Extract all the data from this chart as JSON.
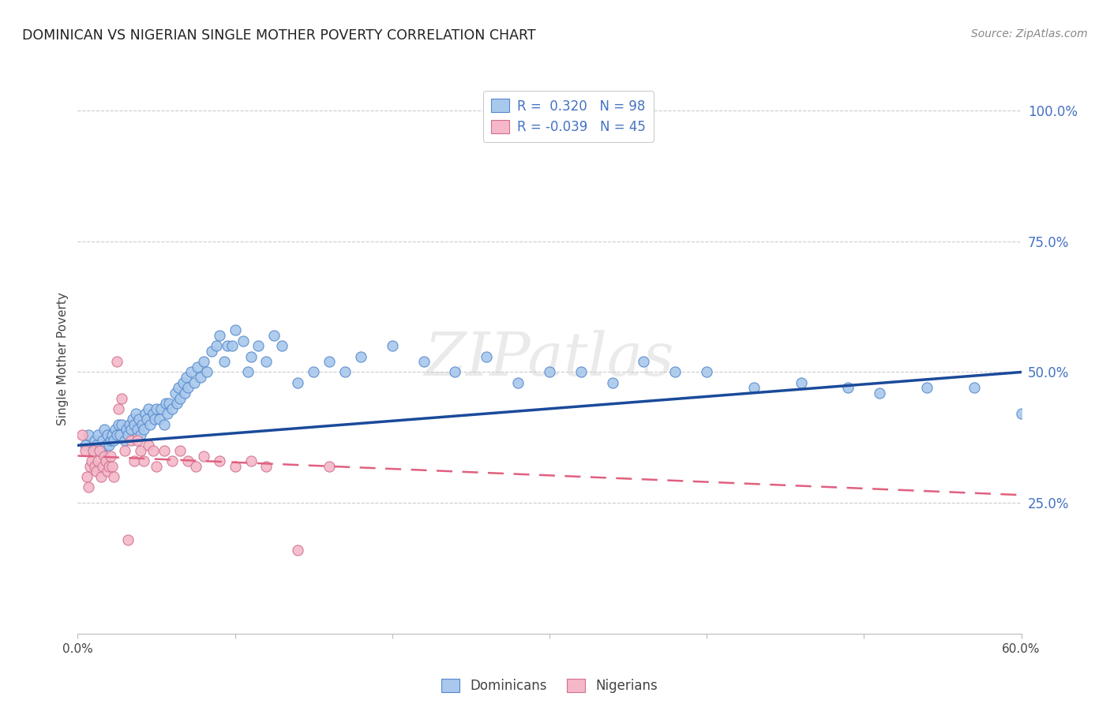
{
  "title": "DOMINICAN VS NIGERIAN SINGLE MOTHER POVERTY CORRELATION CHART",
  "source": "Source: ZipAtlas.com",
  "ylabel": "Single Mother Poverty",
  "ytick_labels": [
    "25.0%",
    "50.0%",
    "75.0%",
    "100.0%"
  ],
  "ytick_values": [
    0.25,
    0.5,
    0.75,
    1.0
  ],
  "xlim": [
    0.0,
    0.6
  ],
  "ylim": [
    0.0,
    1.05
  ],
  "dominican_color": "#A8C8EC",
  "dominican_edge_color": "#5588CC",
  "nigerian_color": "#F4B8C8",
  "nigerian_edge_color": "#D07090",
  "dominican_line_color": "#1A4A9A",
  "nigerian_line_color": "#E06080",
  "watermark": "ZIPatlas",
  "dominicans_x": [
    0.005,
    0.007,
    0.01,
    0.011,
    0.012,
    0.013,
    0.015,
    0.016,
    0.017,
    0.018,
    0.019,
    0.02,
    0.021,
    0.022,
    0.023,
    0.024,
    0.025,
    0.026,
    0.027,
    0.028,
    0.03,
    0.031,
    0.032,
    0.033,
    0.034,
    0.035,
    0.036,
    0.037,
    0.038,
    0.039,
    0.04,
    0.041,
    0.042,
    0.043,
    0.044,
    0.045,
    0.046,
    0.048,
    0.049,
    0.05,
    0.052,
    0.053,
    0.055,
    0.056,
    0.057,
    0.058,
    0.06,
    0.062,
    0.063,
    0.064,
    0.065,
    0.067,
    0.068,
    0.069,
    0.07,
    0.072,
    0.074,
    0.076,
    0.078,
    0.08,
    0.082,
    0.085,
    0.088,
    0.09,
    0.093,
    0.095,
    0.098,
    0.1,
    0.105,
    0.108,
    0.11,
    0.115,
    0.12,
    0.125,
    0.13,
    0.14,
    0.15,
    0.16,
    0.17,
    0.18,
    0.2,
    0.22,
    0.24,
    0.26,
    0.28,
    0.3,
    0.32,
    0.34,
    0.36,
    0.38,
    0.4,
    0.43,
    0.46,
    0.49,
    0.51,
    0.54,
    0.57,
    0.6
  ],
  "dominicans_y": [
    0.36,
    0.38,
    0.35,
    0.37,
    0.36,
    0.38,
    0.35,
    0.37,
    0.39,
    0.36,
    0.38,
    0.36,
    0.37,
    0.38,
    0.37,
    0.39,
    0.38,
    0.4,
    0.38,
    0.4,
    0.37,
    0.39,
    0.38,
    0.4,
    0.39,
    0.41,
    0.4,
    0.42,
    0.39,
    0.41,
    0.38,
    0.4,
    0.39,
    0.42,
    0.41,
    0.43,
    0.4,
    0.42,
    0.41,
    0.43,
    0.41,
    0.43,
    0.4,
    0.44,
    0.42,
    0.44,
    0.43,
    0.46,
    0.44,
    0.47,
    0.45,
    0.48,
    0.46,
    0.49,
    0.47,
    0.5,
    0.48,
    0.51,
    0.49,
    0.52,
    0.5,
    0.54,
    0.55,
    0.57,
    0.52,
    0.55,
    0.55,
    0.58,
    0.56,
    0.5,
    0.53,
    0.55,
    0.52,
    0.57,
    0.55,
    0.48,
    0.5,
    0.52,
    0.5,
    0.53,
    0.55,
    0.52,
    0.5,
    0.53,
    0.48,
    0.5,
    0.5,
    0.48,
    0.52,
    0.5,
    0.5,
    0.47,
    0.48,
    0.47,
    0.46,
    0.47,
    0.47,
    0.42
  ],
  "nigerians_x": [
    0.003,
    0.005,
    0.006,
    0.007,
    0.008,
    0.009,
    0.01,
    0.011,
    0.012,
    0.013,
    0.014,
    0.015,
    0.016,
    0.017,
    0.018,
    0.019,
    0.02,
    0.021,
    0.022,
    0.023,
    0.025,
    0.026,
    0.028,
    0.03,
    0.032,
    0.034,
    0.036,
    0.038,
    0.04,
    0.042,
    0.045,
    0.048,
    0.05,
    0.055,
    0.06,
    0.065,
    0.07,
    0.075,
    0.08,
    0.09,
    0.1,
    0.11,
    0.12,
    0.14,
    0.16
  ],
  "nigerians_y": [
    0.38,
    0.35,
    0.3,
    0.28,
    0.32,
    0.33,
    0.35,
    0.32,
    0.31,
    0.33,
    0.35,
    0.3,
    0.32,
    0.34,
    0.33,
    0.31,
    0.32,
    0.34,
    0.32,
    0.3,
    0.52,
    0.43,
    0.45,
    0.35,
    0.18,
    0.37,
    0.33,
    0.37,
    0.35,
    0.33,
    0.36,
    0.35,
    0.32,
    0.35,
    0.33,
    0.35,
    0.33,
    0.32,
    0.34,
    0.33,
    0.32,
    0.33,
    0.32,
    0.16,
    0.32
  ]
}
